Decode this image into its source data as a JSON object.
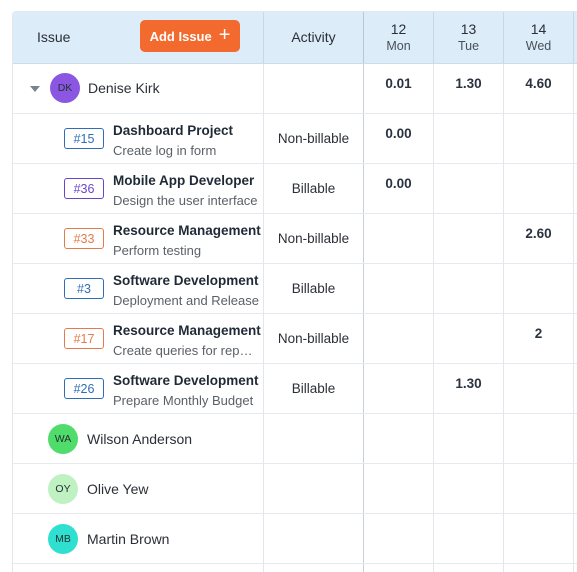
{
  "header": {
    "issue_label": "Issue",
    "add_issue_label": "Add Issue",
    "add_icon": "plus-icon",
    "activity_label": "Activity",
    "days": [
      {
        "num": "12",
        "name": "Mon"
      },
      {
        "num": "13",
        "name": "Tue"
      },
      {
        "num": "14",
        "name": "Wed"
      }
    ]
  },
  "colors": {
    "accent": "#f26a2e",
    "header_bg": "#dcecf9",
    "badge_blue": "#2f6db5",
    "badge_purple": "#6a45c9",
    "badge_orange": "#e47a4a"
  },
  "people": [
    {
      "initials": "DK",
      "name": "Denise Kirk",
      "avatar_color": "#8a56e2",
      "expanded": true,
      "totals": [
        "0.01",
        "1.30",
        "4.60"
      ]
    },
    {
      "initials": "WA",
      "name": "Wilson Anderson",
      "avatar_color": "#4fdc6a"
    },
    {
      "initials": "OY",
      "name": "Olive Yew",
      "avatar_color": "#bff1c2"
    },
    {
      "initials": "MB",
      "name": "Martin Brown",
      "avatar_color": "#2fe0d0"
    }
  ],
  "issues": [
    {
      "id": "#15",
      "title": "Dashboard Project",
      "subtitle": "Create log in form",
      "activity": "Non-billable",
      "hours": [
        "0.00",
        "",
        ""
      ]
    },
    {
      "id": "#36",
      "title": "Mobile App Developer",
      "subtitle": "Design the user interface",
      "activity": "Billable",
      "hours": [
        "0.00",
        "",
        ""
      ]
    },
    {
      "id": "#33",
      "title": "Resource Management",
      "subtitle": "Perform testing",
      "activity": "Non-billable",
      "hours": [
        "",
        "",
        "2.60"
      ]
    },
    {
      "id": "#3",
      "title": "Software Development",
      "subtitle": "Deployment and Release",
      "activity": "Billable",
      "hours": [
        "",
        "",
        ""
      ]
    },
    {
      "id": "#17",
      "title": "Resource Management",
      "subtitle": "Create queries for reports",
      "activity": "Non-billable",
      "hours": [
        "",
        "",
        "2"
      ]
    },
    {
      "id": "#26",
      "title": "Software Development",
      "subtitle": "Prepare Monthly Budget",
      "activity": "Billable",
      "hours": [
        "",
        "1.30",
        ""
      ]
    }
  ]
}
